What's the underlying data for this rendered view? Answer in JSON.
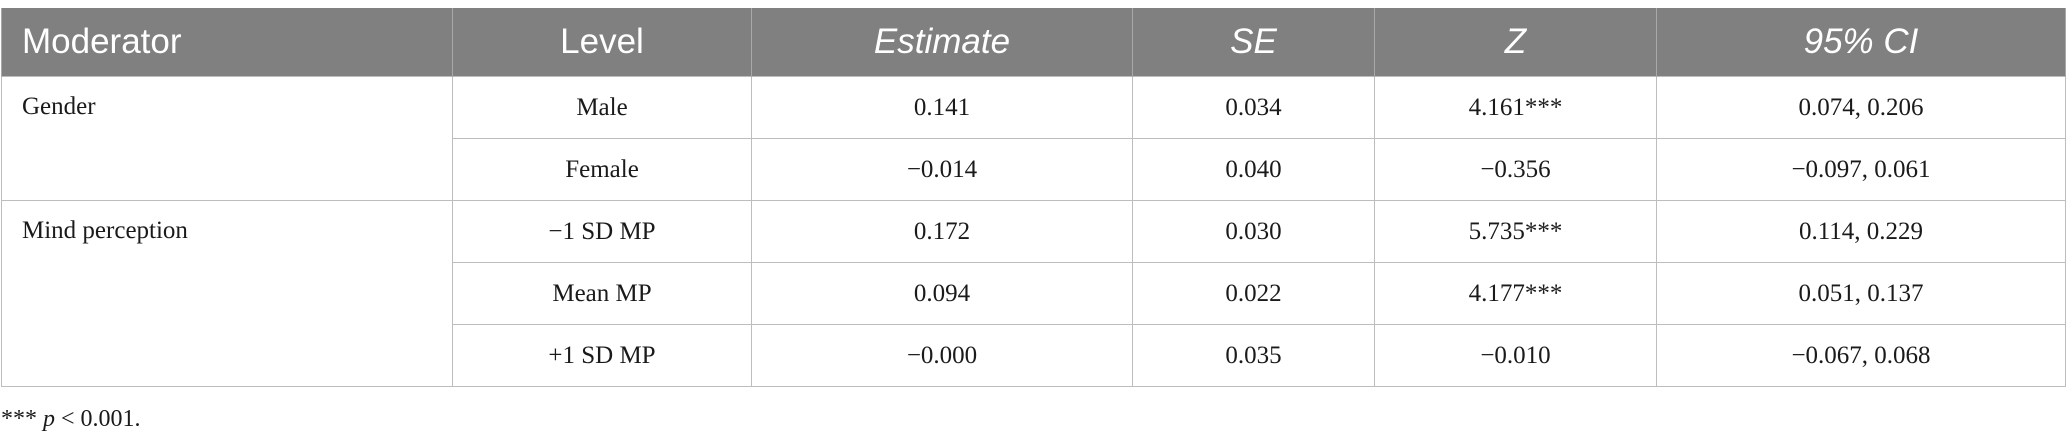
{
  "table": {
    "headers": [
      "Moderator",
      "Level",
      "Estimate",
      "SE",
      "Z",
      "95% CI"
    ],
    "groups": [
      {
        "moderator": "Gender",
        "rows": [
          {
            "level": "Male",
            "estimate": "0.141",
            "se": "0.034",
            "z": "4.161***",
            "ci": "0.074, 0.206"
          },
          {
            "level": "Female",
            "estimate": "−0.014",
            "se": "0.040",
            "z": "−0.356",
            "ci": "−0.097, 0.061"
          }
        ]
      },
      {
        "moderator": "Mind perception",
        "rows": [
          {
            "level": "−1 SD MP",
            "estimate": "0.172",
            "se": "0.030",
            "z": "5.735***",
            "ci": "0.114, 0.229"
          },
          {
            "level": "Mean MP",
            "estimate": "0.094",
            "se": "0.022",
            "z": "4.177***",
            "ci": "0.051, 0.137"
          },
          {
            "level": "+1 SD MP",
            "estimate": "−0.000",
            "se": "0.035",
            "z": "−0.010",
            "ci": "−0.067, 0.068"
          }
        ]
      }
    ]
  },
  "footnote": {
    "stars": "***",
    "p": "p",
    "rest": " < 0.001."
  }
}
